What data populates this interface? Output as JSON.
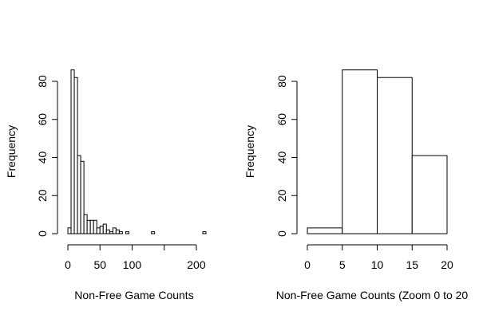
{
  "chart_data": [
    {
      "type": "bar",
      "subtype": "histogram",
      "title": "",
      "xlabel": "Non-Free Game Counts",
      "ylabel": "Frequency",
      "xlim": [
        0,
        210
      ],
      "ylim": [
        0,
        80
      ],
      "x_ticks": [
        0,
        50,
        100,
        200
      ],
      "x_ticks_unlabeled": [
        150
      ],
      "y_ticks": [
        0,
        20,
        40,
        60,
        80
      ],
      "bin_width": 5,
      "bins_start": 0,
      "values": [
        3,
        86,
        82,
        41,
        38,
        10,
        7,
        7,
        7,
        3,
        4,
        5,
        2,
        1,
        3,
        2,
        1,
        0,
        1,
        0,
        0,
        0,
        0,
        0,
        0,
        0,
        1,
        0,
        0,
        0,
        0,
        0,
        0,
        0,
        0,
        0,
        0,
        0,
        0,
        0,
        0,
        0,
        1
      ],
      "color": "#ffffff",
      "stroke": "#000000"
    },
    {
      "type": "bar",
      "subtype": "histogram",
      "title": "",
      "xlabel": "Non-Free Game Counts (Zoom 0 to 20",
      "ylabel": "Frequency",
      "xlim": [
        0,
        20
      ],
      "ylim": [
        0,
        80
      ],
      "x_ticks": [
        0,
        5,
        10,
        15,
        20
      ],
      "y_ticks": [
        0,
        20,
        40,
        60,
        80
      ],
      "bin_width": 5,
      "bins_start": 0,
      "values": [
        3,
        86,
        82,
        41
      ],
      "color": "#ffffff",
      "stroke": "#000000"
    }
  ]
}
